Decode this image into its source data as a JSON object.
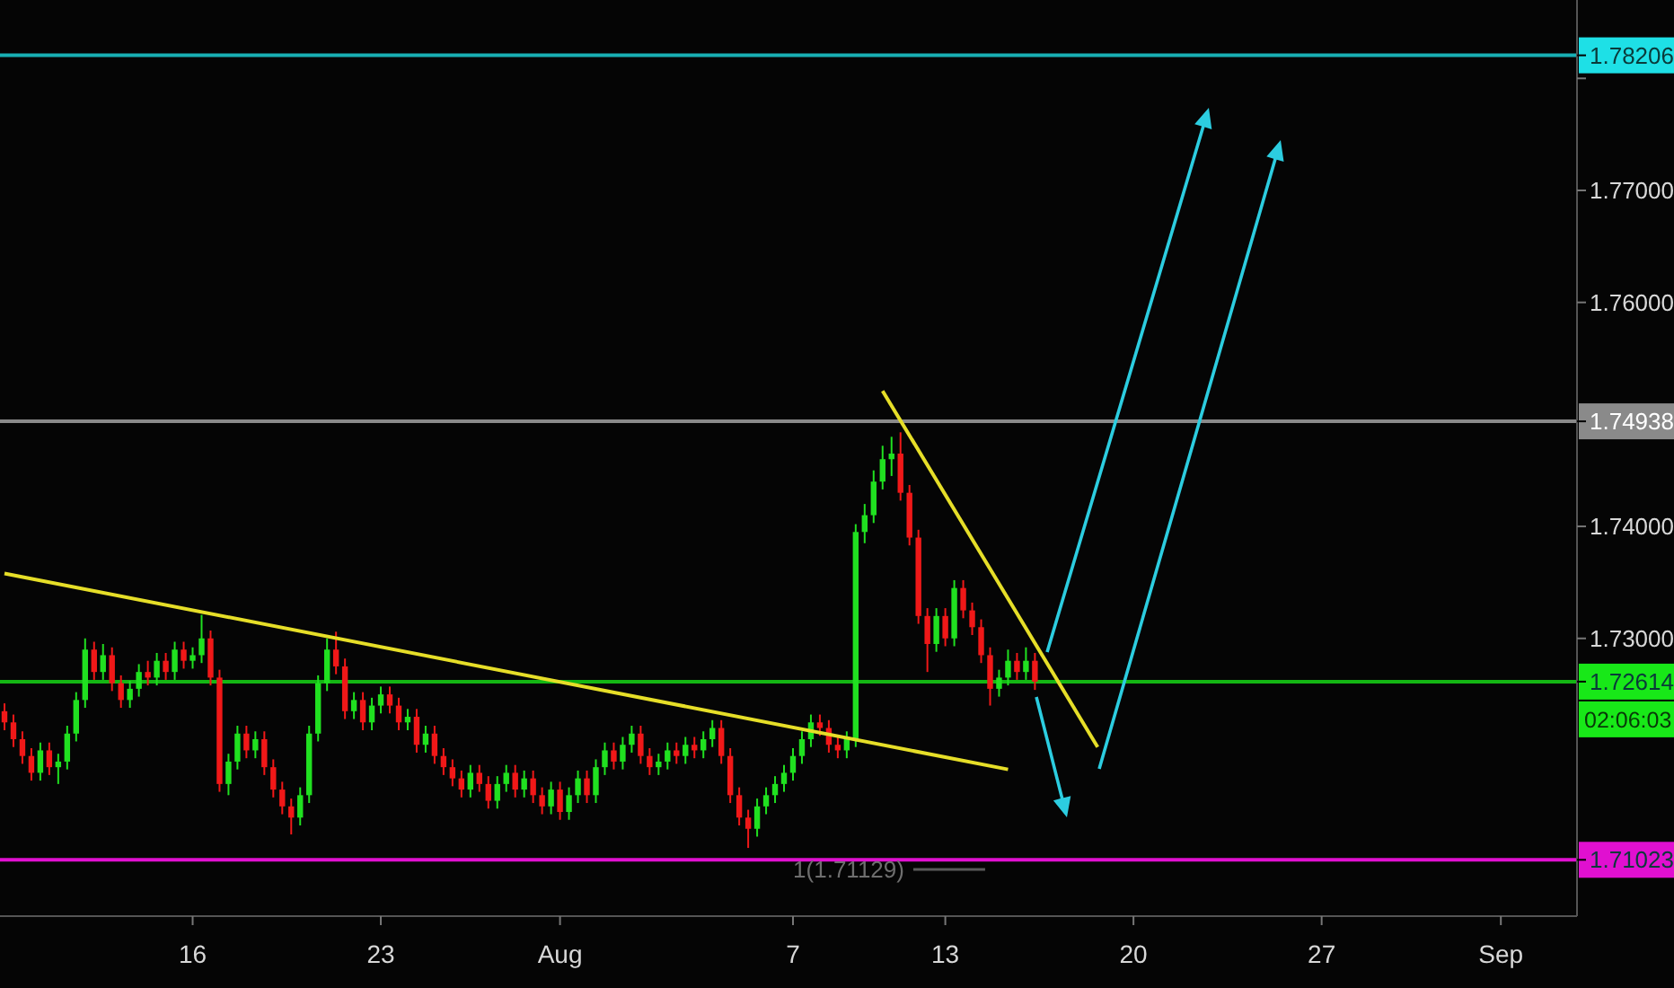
{
  "chart_data": {
    "type": "candlestick",
    "categories": [
      null,
      null,
      null,
      null,
      null,
      null,
      null,
      null,
      null,
      null,
      null,
      null,
      null,
      null,
      null,
      null,
      null,
      null,
      null,
      null,
      null,
      "16",
      null,
      null,
      null,
      null,
      null,
      null,
      null,
      null,
      null,
      null,
      null,
      null,
      null,
      null,
      null,
      null,
      null,
      null,
      null,
      null,
      "23",
      null,
      null,
      null,
      null,
      null,
      null,
      null,
      null,
      null,
      null,
      null,
      null,
      null,
      null,
      null,
      null,
      null,
      null,
      null,
      "Aug",
      null,
      null,
      null,
      null,
      null,
      null,
      null,
      null,
      null,
      null,
      null,
      null,
      null,
      null,
      null,
      null,
      null,
      null,
      null,
      null,
      null,
      null,
      null,
      null,
      null,
      "7",
      null,
      null,
      null,
      null,
      null,
      null,
      null,
      null,
      null,
      null,
      null,
      null,
      null,
      null,
      null,
      null,
      "13",
      null,
      null,
      null,
      null,
      null,
      null,
      null,
      null,
      null,
      null,
      null,
      null,
      null,
      null,
      null,
      null,
      null,
      null,
      null,
      null,
      "20",
      null,
      null,
      null,
      null,
      null,
      null,
      null,
      null,
      null,
      null,
      null,
      null,
      null,
      null,
      null,
      null,
      null,
      null,
      null,
      null,
      "27",
      null,
      null,
      null,
      null,
      null,
      null,
      null,
      null,
      null,
      null,
      null,
      null,
      null,
      null,
      null,
      null,
      null,
      null,
      null,
      "Sep",
      null,
      null,
      null,
      null,
      null,
      null,
      null,
      null
    ],
    "ohlc": [
      [
        1.7235,
        1.7242,
        1.7218,
        1.7225
      ],
      [
        1.7225,
        1.7232,
        1.7203,
        1.721
      ],
      [
        1.721,
        1.7217,
        1.7188,
        1.7195
      ],
      [
        1.7195,
        1.7202,
        1.7173,
        1.718
      ],
      [
        1.718,
        1.7207,
        1.7173,
        1.72
      ],
      [
        1.72,
        1.7207,
        1.7178,
        1.7185
      ],
      [
        1.7185,
        1.7197,
        1.717,
        1.719
      ],
      [
        1.719,
        1.7222,
        1.7183,
        1.7215
      ],
      [
        1.7215,
        1.7252,
        1.7208,
        1.7245
      ],
      [
        1.7245,
        1.73,
        1.7238,
        1.729
      ],
      [
        1.729,
        1.7297,
        1.7263,
        1.727
      ],
      [
        1.727,
        1.7295,
        1.7263,
        1.7285
      ],
      [
        1.7285,
        1.7292,
        1.7253,
        1.726
      ],
      [
        1.726,
        1.7267,
        1.7238,
        1.7245
      ],
      [
        1.7245,
        1.7262,
        1.7238,
        1.7255
      ],
      [
        1.7255,
        1.7277,
        1.7248,
        1.727
      ],
      [
        1.727,
        1.728,
        1.7258,
        1.7265
      ],
      [
        1.7265,
        1.7287,
        1.7258,
        1.728
      ],
      [
        1.728,
        1.7287,
        1.7263,
        1.727
      ],
      [
        1.727,
        1.7297,
        1.7263,
        1.729
      ],
      [
        1.729,
        1.7297,
        1.7273,
        1.728
      ],
      [
        1.728,
        1.7292,
        1.7273,
        1.7285
      ],
      [
        1.7285,
        1.7321,
        1.7278,
        1.73
      ],
      [
        1.73,
        1.7307,
        1.7258,
        1.7265
      ],
      [
        1.7265,
        1.7272,
        1.7163,
        1.717
      ],
      [
        1.717,
        1.7197,
        1.716,
        1.719
      ],
      [
        1.719,
        1.7222,
        1.7183,
        1.7215
      ],
      [
        1.7215,
        1.7222,
        1.7193,
        1.72
      ],
      [
        1.72,
        1.7217,
        1.7193,
        1.721
      ],
      [
        1.721,
        1.7217,
        1.7178,
        1.7185
      ],
      [
        1.7185,
        1.7192,
        1.7158,
        1.7165
      ],
      [
        1.7165,
        1.7172,
        1.7143,
        1.715
      ],
      [
        1.715,
        1.7157,
        1.7125,
        1.714
      ],
      [
        1.714,
        1.7167,
        1.7133,
        1.716
      ],
      [
        1.716,
        1.7222,
        1.7153,
        1.7215
      ],
      [
        1.7215,
        1.7267,
        1.7208,
        1.726
      ],
      [
        1.726,
        1.73,
        1.7253,
        1.729
      ],
      [
        1.729,
        1.7306,
        1.7268,
        1.7275
      ],
      [
        1.7275,
        1.7282,
        1.7228,
        1.7235
      ],
      [
        1.7235,
        1.7252,
        1.7228,
        1.7245
      ],
      [
        1.7245,
        1.7252,
        1.7218,
        1.7225
      ],
      [
        1.7225,
        1.7247,
        1.7218,
        1.724
      ],
      [
        1.724,
        1.7257,
        1.7233,
        1.725
      ],
      [
        1.725,
        1.7257,
        1.7233,
        1.724
      ],
      [
        1.724,
        1.7247,
        1.7218,
        1.7225
      ],
      [
        1.7225,
        1.7237,
        1.7218,
        1.723
      ],
      [
        1.723,
        1.7237,
        1.7198,
        1.7205
      ],
      [
        1.7205,
        1.7222,
        1.7198,
        1.7215
      ],
      [
        1.7215,
        1.7222,
        1.7188,
        1.7195
      ],
      [
        1.7195,
        1.7202,
        1.7178,
        1.7185
      ],
      [
        1.7185,
        1.7192,
        1.7168,
        1.7175
      ],
      [
        1.7175,
        1.7182,
        1.7158,
        1.7165
      ],
      [
        1.7165,
        1.7187,
        1.7158,
        1.718
      ],
      [
        1.718,
        1.7187,
        1.7163,
        1.717
      ],
      [
        1.717,
        1.7177,
        1.7148,
        1.7155
      ],
      [
        1.7155,
        1.7177,
        1.7148,
        1.717
      ],
      [
        1.717,
        1.7187,
        1.7163,
        1.718
      ],
      [
        1.718,
        1.7187,
        1.7158,
        1.7165
      ],
      [
        1.7165,
        1.7182,
        1.7158,
        1.7175
      ],
      [
        1.7175,
        1.7182,
        1.7153,
        1.716
      ],
      [
        1.716,
        1.7167,
        1.7143,
        1.715
      ],
      [
        1.715,
        1.7172,
        1.7143,
        1.7165
      ],
      [
        1.7165,
        1.7172,
        1.7138,
        1.7145
      ],
      [
        1.7145,
        1.7167,
        1.7138,
        1.716
      ],
      [
        1.716,
        1.7182,
        1.7153,
        1.7175
      ],
      [
        1.7175,
        1.7182,
        1.7153,
        1.716
      ],
      [
        1.716,
        1.7192,
        1.7153,
        1.7185
      ],
      [
        1.7185,
        1.7207,
        1.7178,
        1.72
      ],
      [
        1.72,
        1.7207,
        1.7183,
        1.719
      ],
      [
        1.719,
        1.7212,
        1.7183,
        1.7205
      ],
      [
        1.7205,
        1.7222,
        1.7198,
        1.7215
      ],
      [
        1.7215,
        1.7222,
        1.7188,
        1.7195
      ],
      [
        1.7195,
        1.7202,
        1.7178,
        1.7185
      ],
      [
        1.7185,
        1.7197,
        1.7178,
        1.719
      ],
      [
        1.719,
        1.7207,
        1.7183,
        1.72
      ],
      [
        1.72,
        1.7207,
        1.7188,
        1.7195
      ],
      [
        1.7195,
        1.7212,
        1.7188,
        1.7205
      ],
      [
        1.7205,
        1.7212,
        1.7193,
        1.72
      ],
      [
        1.72,
        1.7217,
        1.7193,
        1.721
      ],
      [
        1.721,
        1.7227,
        1.7203,
        1.722
      ],
      [
        1.722,
        1.7227,
        1.7188,
        1.7195
      ],
      [
        1.7195,
        1.7202,
        1.7153,
        1.716
      ],
      [
        1.716,
        1.7167,
        1.7133,
        1.714
      ],
      [
        1.714,
        1.7147,
        1.71129,
        1.713
      ],
      [
        1.713,
        1.7157,
        1.7123,
        1.715
      ],
      [
        1.715,
        1.7167,
        1.7143,
        1.716
      ],
      [
        1.716,
        1.7177,
        1.7153,
        1.717
      ],
      [
        1.717,
        1.7187,
        1.7163,
        1.718
      ],
      [
        1.718,
        1.7202,
        1.7173,
        1.7195
      ],
      [
        1.7195,
        1.7217,
        1.7188,
        1.721
      ],
      [
        1.721,
        1.7232,
        1.7203,
        1.7225
      ],
      [
        1.7225,
        1.7232,
        1.7213,
        1.722
      ],
      [
        1.722,
        1.7227,
        1.7198,
        1.7205
      ],
      [
        1.7205,
        1.7212,
        1.7193,
        1.72
      ],
      [
        1.72,
        1.7217,
        1.7193,
        1.721
      ],
      [
        1.721,
        1.7402,
        1.7203,
        1.7395
      ],
      [
        1.7395,
        1.742,
        1.7385,
        1.741
      ],
      [
        1.741,
        1.745,
        1.7403,
        1.744
      ],
      [
        1.744,
        1.7472,
        1.7433,
        1.746
      ],
      [
        1.746,
        1.748,
        1.7445,
        1.7465
      ],
      [
        1.7465,
        1.7484,
        1.7423,
        1.743
      ],
      [
        1.743,
        1.7437,
        1.7383,
        1.739
      ],
      [
        1.739,
        1.7397,
        1.7313,
        1.732
      ],
      [
        1.732,
        1.7327,
        1.727,
        1.7295
      ],
      [
        1.7295,
        1.7327,
        1.7288,
        1.732
      ],
      [
        1.732,
        1.7327,
        1.7293,
        1.73
      ],
      [
        1.73,
        1.7352,
        1.7293,
        1.7345
      ],
      [
        1.7345,
        1.7352,
        1.7318,
        1.7325
      ],
      [
        1.7325,
        1.7332,
        1.7303,
        1.731
      ],
      [
        1.731,
        1.7317,
        1.7278,
        1.7285
      ],
      [
        1.7285,
        1.7292,
        1.724,
        1.7255
      ],
      [
        1.7255,
        1.7272,
        1.7248,
        1.7265
      ],
      [
        1.7265,
        1.729,
        1.7258,
        1.728
      ],
      [
        1.728,
        1.7287,
        1.7263,
        1.727
      ],
      [
        1.727,
        1.7292,
        1.7263,
        1.728
      ],
      [
        1.728,
        1.7287,
        1.7254,
        1.72614
      ],
      null,
      null,
      null,
      null,
      null,
      null,
      null,
      null,
      null,
      null,
      null,
      null,
      null,
      null,
      null,
      null,
      null,
      null,
      null,
      null,
      null,
      null,
      null,
      null,
      null,
      null,
      null,
      null,
      null,
      null,
      null,
      null,
      null,
      null,
      null,
      null,
      null,
      null,
      null,
      null,
      null,
      null,
      null,
      null,
      null,
      null,
      null,
      null,
      null,
      null,
      null,
      null,
      null,
      null,
      null,
      null,
      null,
      null,
      null,
      null
    ],
    "series": [
      {
        "type": "line",
        "color": "#e6de28",
        "values": [
          1.7358,
          null,
          null,
          null,
          null,
          null,
          null,
          null,
          null,
          null,
          null,
          null,
          null,
          null,
          null,
          null,
          null,
          null,
          null,
          null,
          null,
          null,
          null,
          null,
          null,
          null,
          null,
          null,
          null,
          null,
          null,
          null,
          null,
          null,
          null,
          null,
          null,
          null,
          null,
          null,
          null,
          null,
          null,
          null,
          null,
          null,
          null,
          null,
          null,
          null,
          null,
          null,
          null,
          null,
          null,
          null,
          null,
          null,
          null,
          null,
          null,
          null,
          null,
          null,
          null,
          null,
          null,
          null,
          null,
          null,
          null,
          null,
          null,
          null,
          null,
          null,
          null,
          null,
          null,
          null,
          null,
          null,
          null,
          null,
          null,
          null,
          null,
          null,
          null,
          null,
          null,
          null,
          null,
          null,
          null,
          null,
          null,
          null,
          null,
          null,
          null,
          null,
          null,
          null,
          null,
          null,
          null,
          null,
          null,
          null,
          null,
          null,
          1.7183,
          null,
          null,
          null,
          null,
          null,
          null,
          null,
          null,
          null,
          null,
          null,
          null,
          null,
          null,
          null,
          null,
          null,
          null,
          null,
          null,
          null,
          null,
          null,
          null,
          null,
          null,
          null,
          null,
          null,
          null,
          null,
          null,
          null,
          null,
          null,
          null,
          null,
          null,
          null,
          null,
          null,
          null,
          null,
          null,
          null,
          null,
          null,
          null,
          null,
          null,
          null,
          null,
          null,
          null,
          null,
          null,
          null,
          null,
          null,
          null,
          null,
          null,
          null
        ]
      },
      {
        "type": "line",
        "color": "#e6de28",
        "values": [
          null,
          null,
          null,
          null,
          null,
          null,
          null,
          null,
          null,
          null,
          null,
          null,
          null,
          null,
          null,
          null,
          null,
          null,
          null,
          null,
          null,
          null,
          null,
          null,
          null,
          null,
          null,
          null,
          null,
          null,
          null,
          null,
          null,
          null,
          null,
          null,
          null,
          null,
          null,
          null,
          null,
          null,
          null,
          null,
          null,
          null,
          null,
          null,
          null,
          null,
          null,
          null,
          null,
          null,
          null,
          null,
          null,
          null,
          null,
          null,
          null,
          null,
          null,
          null,
          null,
          null,
          null,
          null,
          null,
          null,
          null,
          null,
          null,
          null,
          null,
          null,
          null,
          null,
          null,
          null,
          null,
          null,
          null,
          null,
          null,
          null,
          null,
          null,
          null,
          null,
          null,
          null,
          null,
          null,
          null,
          null,
          null,
          null,
          1.7521,
          null,
          null,
          null,
          null,
          null,
          null,
          null,
          null,
          null,
          null,
          null,
          null,
          null,
          null,
          null,
          null,
          null,
          null,
          null,
          null,
          null,
          null,
          null,
          1.7203,
          null,
          null,
          null,
          null,
          null,
          null,
          null,
          null,
          null,
          null,
          null,
          null,
          null,
          null,
          null,
          null,
          null,
          null,
          null,
          null,
          null,
          null,
          null,
          null,
          null,
          null,
          null,
          null,
          null,
          null,
          null,
          null,
          null,
          null,
          null,
          null,
          null,
          null,
          null,
          null,
          null,
          null,
          null,
          null,
          null,
          null,
          null,
          null,
          null,
          null,
          null,
          null,
          null
        ]
      }
    ],
    "ylim": [
      1.7052,
      1.787
    ],
    "yticks": [
      {
        "value": 1.73,
        "label": "1.73000"
      },
      {
        "value": 1.74,
        "label": "1.74000"
      },
      {
        "value": 1.76,
        "label": "1.76000"
      },
      {
        "value": 1.77,
        "label": "1.77000"
      },
      {
        "value": 1.78,
        "label": null
      }
    ],
    "ref_lines": [
      {
        "axis": "y",
        "value": 1.78206,
        "label": "1.78206",
        "color": "#1ee0e6"
      },
      {
        "axis": "y",
        "value": 1.74938,
        "label": "1.74938",
        "color": "#8a8a8a"
      },
      {
        "axis": "y",
        "value": 1.72614,
        "label": "1.72614",
        "color": "#18e818"
      },
      {
        "axis": "y",
        "value": 1.71023,
        "label": "1.71023",
        "color": "#e010d0"
      }
    ],
    "annotations": [
      "1(1.71129)",
      "02:06:03"
    ]
  }
}
